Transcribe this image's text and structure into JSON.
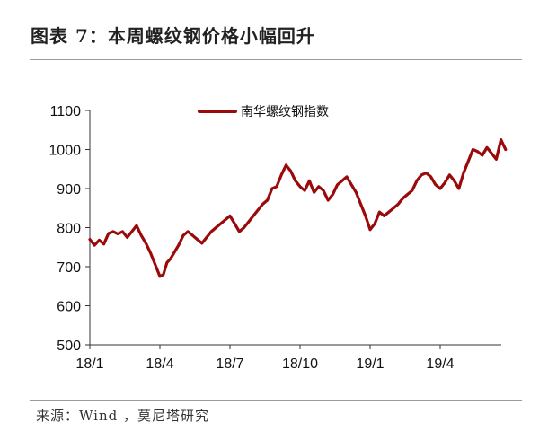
{
  "figure": {
    "title": "图表 7：本周螺纹钢价格小幅回升",
    "source": "来源：Wind ，莫尼塔研究"
  },
  "chart_data": {
    "type": "line",
    "title": "图表 7：本周螺纹钢价格小幅回升",
    "xlabel": "",
    "ylabel": "",
    "ylim": [
      500,
      1100
    ],
    "yticks": [
      500,
      600,
      700,
      800,
      900,
      1000,
      1100
    ],
    "xticks": [
      "18/1",
      "18/4",
      "18/7",
      "18/10",
      "19/1",
      "19/4"
    ],
    "x_units": "months since 2018-01",
    "grid": false,
    "legend_position": "top-center",
    "series": [
      {
        "name": "南华螺纹钢指数",
        "color": "#9b0a0a",
        "x": [
          0.0,
          0.2,
          0.4,
          0.6,
          0.8,
          1.0,
          1.2,
          1.4,
          1.6,
          1.8,
          2.0,
          2.2,
          2.4,
          2.6,
          2.8,
          3.0,
          3.15,
          3.3,
          3.45,
          3.6,
          3.8,
          4.0,
          4.2,
          4.4,
          4.6,
          4.8,
          5.0,
          5.2,
          5.4,
          5.6,
          5.8,
          6.0,
          6.2,
          6.4,
          6.6,
          6.8,
          7.0,
          7.2,
          7.4,
          7.6,
          7.8,
          8.0,
          8.2,
          8.4,
          8.6,
          8.8,
          9.0,
          9.2,
          9.4,
          9.6,
          9.8,
          10.0,
          10.2,
          10.4,
          10.6,
          10.8,
          11.0,
          11.2,
          11.4,
          11.6,
          11.8,
          12.0,
          12.2,
          12.4,
          12.6,
          12.8,
          13.0,
          13.2,
          13.4,
          13.6,
          13.8,
          14.0,
          14.2,
          14.4,
          14.6,
          14.8,
          15.0,
          15.2,
          15.4,
          15.6,
          15.8,
          16.0,
          16.2,
          16.4,
          16.6,
          16.8,
          17.0,
          17.2,
          17.4,
          17.6,
          17.8
        ],
        "values": [
          770,
          755,
          768,
          758,
          785,
          790,
          784,
          790,
          775,
          790,
          805,
          780,
          760,
          735,
          705,
          675,
          680,
          710,
          720,
          735,
          755,
          780,
          790,
          780,
          770,
          760,
          775,
          790,
          800,
          810,
          820,
          830,
          810,
          790,
          800,
          815,
          830,
          845,
          860,
          870,
          900,
          905,
          935,
          960,
          945,
          920,
          905,
          895,
          920,
          890,
          905,
          895,
          870,
          885,
          910,
          920,
          930,
          910,
          890,
          860,
          830,
          795,
          810,
          840,
          830,
          840,
          850,
          860,
          875,
          885,
          895,
          920,
          935,
          940,
          930,
          910,
          900,
          915,
          935,
          920,
          900,
          940,
          970,
          1000,
          995,
          985,
          1005,
          990,
          975,
          1025,
          1000
        ]
      }
    ]
  }
}
